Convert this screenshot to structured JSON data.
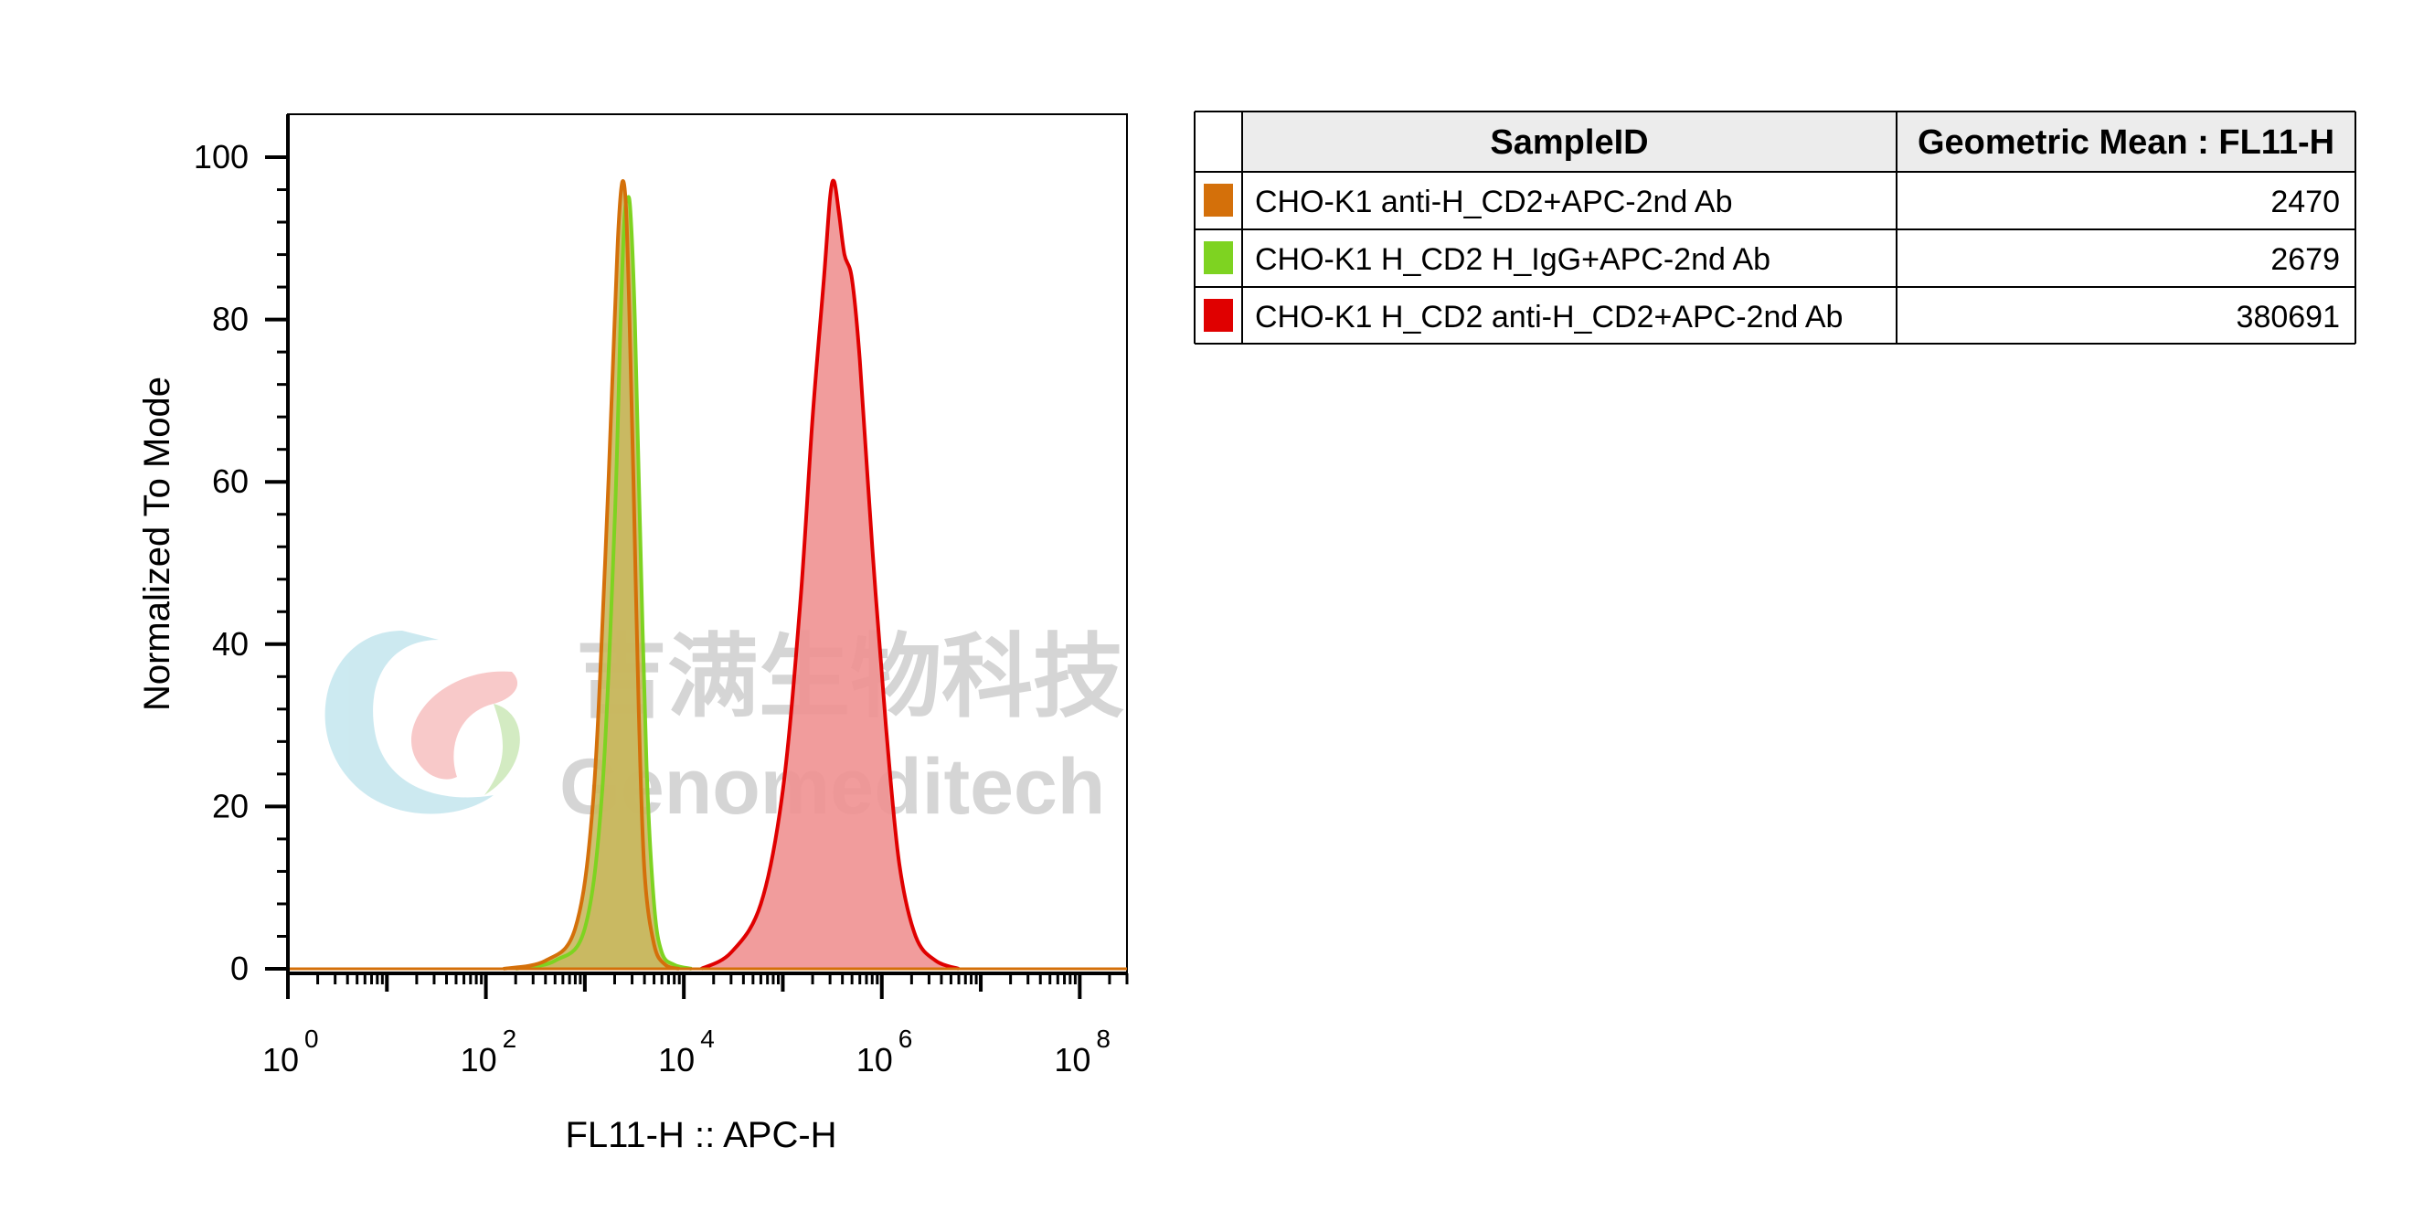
{
  "chart_data": {
    "type": "area",
    "xlabel": "FL11-H :: APC-H",
    "ylabel": "Normalized To Mode",
    "x_scale": "log10",
    "xlim": [
      1,
      300000000
    ],
    "ylim": [
      0,
      105
    ],
    "y_ticks": [
      0,
      20,
      40,
      60,
      80,
      100
    ],
    "x_ticks": [
      {
        "value": 1,
        "base": "10",
        "exp": "0"
      },
      {
        "value": 100,
        "base": "10",
        "exp": "2"
      },
      {
        "value": 10000,
        "base": "10",
        "exp": "4"
      },
      {
        "value": 1000000,
        "base": "10",
        "exp": "6"
      },
      {
        "value": 100000000,
        "base": "10",
        "exp": "8"
      }
    ],
    "series": [
      {
        "name": "CHO-K1 H_CD2 H_IgG+APC-2nd Ab",
        "color": "#7ed321",
        "fill": "#c9b860",
        "x": [
          200,
          500,
          1000,
          1500,
          2000,
          2300,
          2500,
          2700,
          2900,
          3200,
          3600,
          4200,
          5000,
          6000,
          8000,
          12000
        ],
        "y": [
          0,
          1,
          5,
          22,
          55,
          80,
          92,
          95,
          93,
          80,
          55,
          25,
          8,
          2,
          0.5,
          0
        ]
      },
      {
        "name": "CHO-K1 anti-H_CD2+APC-2nd Ab",
        "color": "#d4700a",
        "fill": "#c9b860",
        "x": [
          150,
          400,
          800,
          1200,
          1600,
          2000,
          2200,
          2400,
          2600,
          2800,
          3100,
          3500,
          4000,
          5000,
          6500,
          9000
        ],
        "y": [
          0,
          1,
          5,
          20,
          50,
          80,
          92,
          97,
          94,
          82,
          60,
          32,
          12,
          3,
          0.5,
          0
        ]
      },
      {
        "name": "CHO-K1 H_CD2 anti-H_CD2+APC-2nd Ab",
        "color": "#e00000",
        "fill": "#ef9191",
        "x": [
          15000,
          30000,
          60000,
          100000,
          150000,
          200000,
          260000,
          300000,
          330000,
          370000,
          420000,
          500000,
          600000,
          800000,
          1100000,
          1500000,
          2200000,
          3500000,
          6000000
        ],
        "y": [
          0,
          2,
          8,
          22,
          45,
          68,
          85,
          95,
          97,
          93,
          88,
          85,
          75,
          52,
          30,
          13,
          4,
          1,
          0
        ]
      }
    ],
    "legend": {
      "placement": "right",
      "headers": [
        "SampleID",
        "Geometric Mean : FL11-H"
      ],
      "rows": [
        {
          "swatch": "#d4700a",
          "sample": "CHO-K1 anti-H_CD2+APC-2nd Ab",
          "value": "2470"
        },
        {
          "swatch": "#7ed321",
          "sample": "CHO-K1 H_CD2 H_IgG+APC-2nd Ab",
          "value": "2679"
        },
        {
          "swatch": "#e00000",
          "sample": "CHO-K1 H_CD2 anti-H_CD2+APC-2nd Ab",
          "value": "380691"
        }
      ]
    }
  },
  "watermark": {
    "chinese": "吉满生物科技",
    "english": "Genomeditech"
  }
}
